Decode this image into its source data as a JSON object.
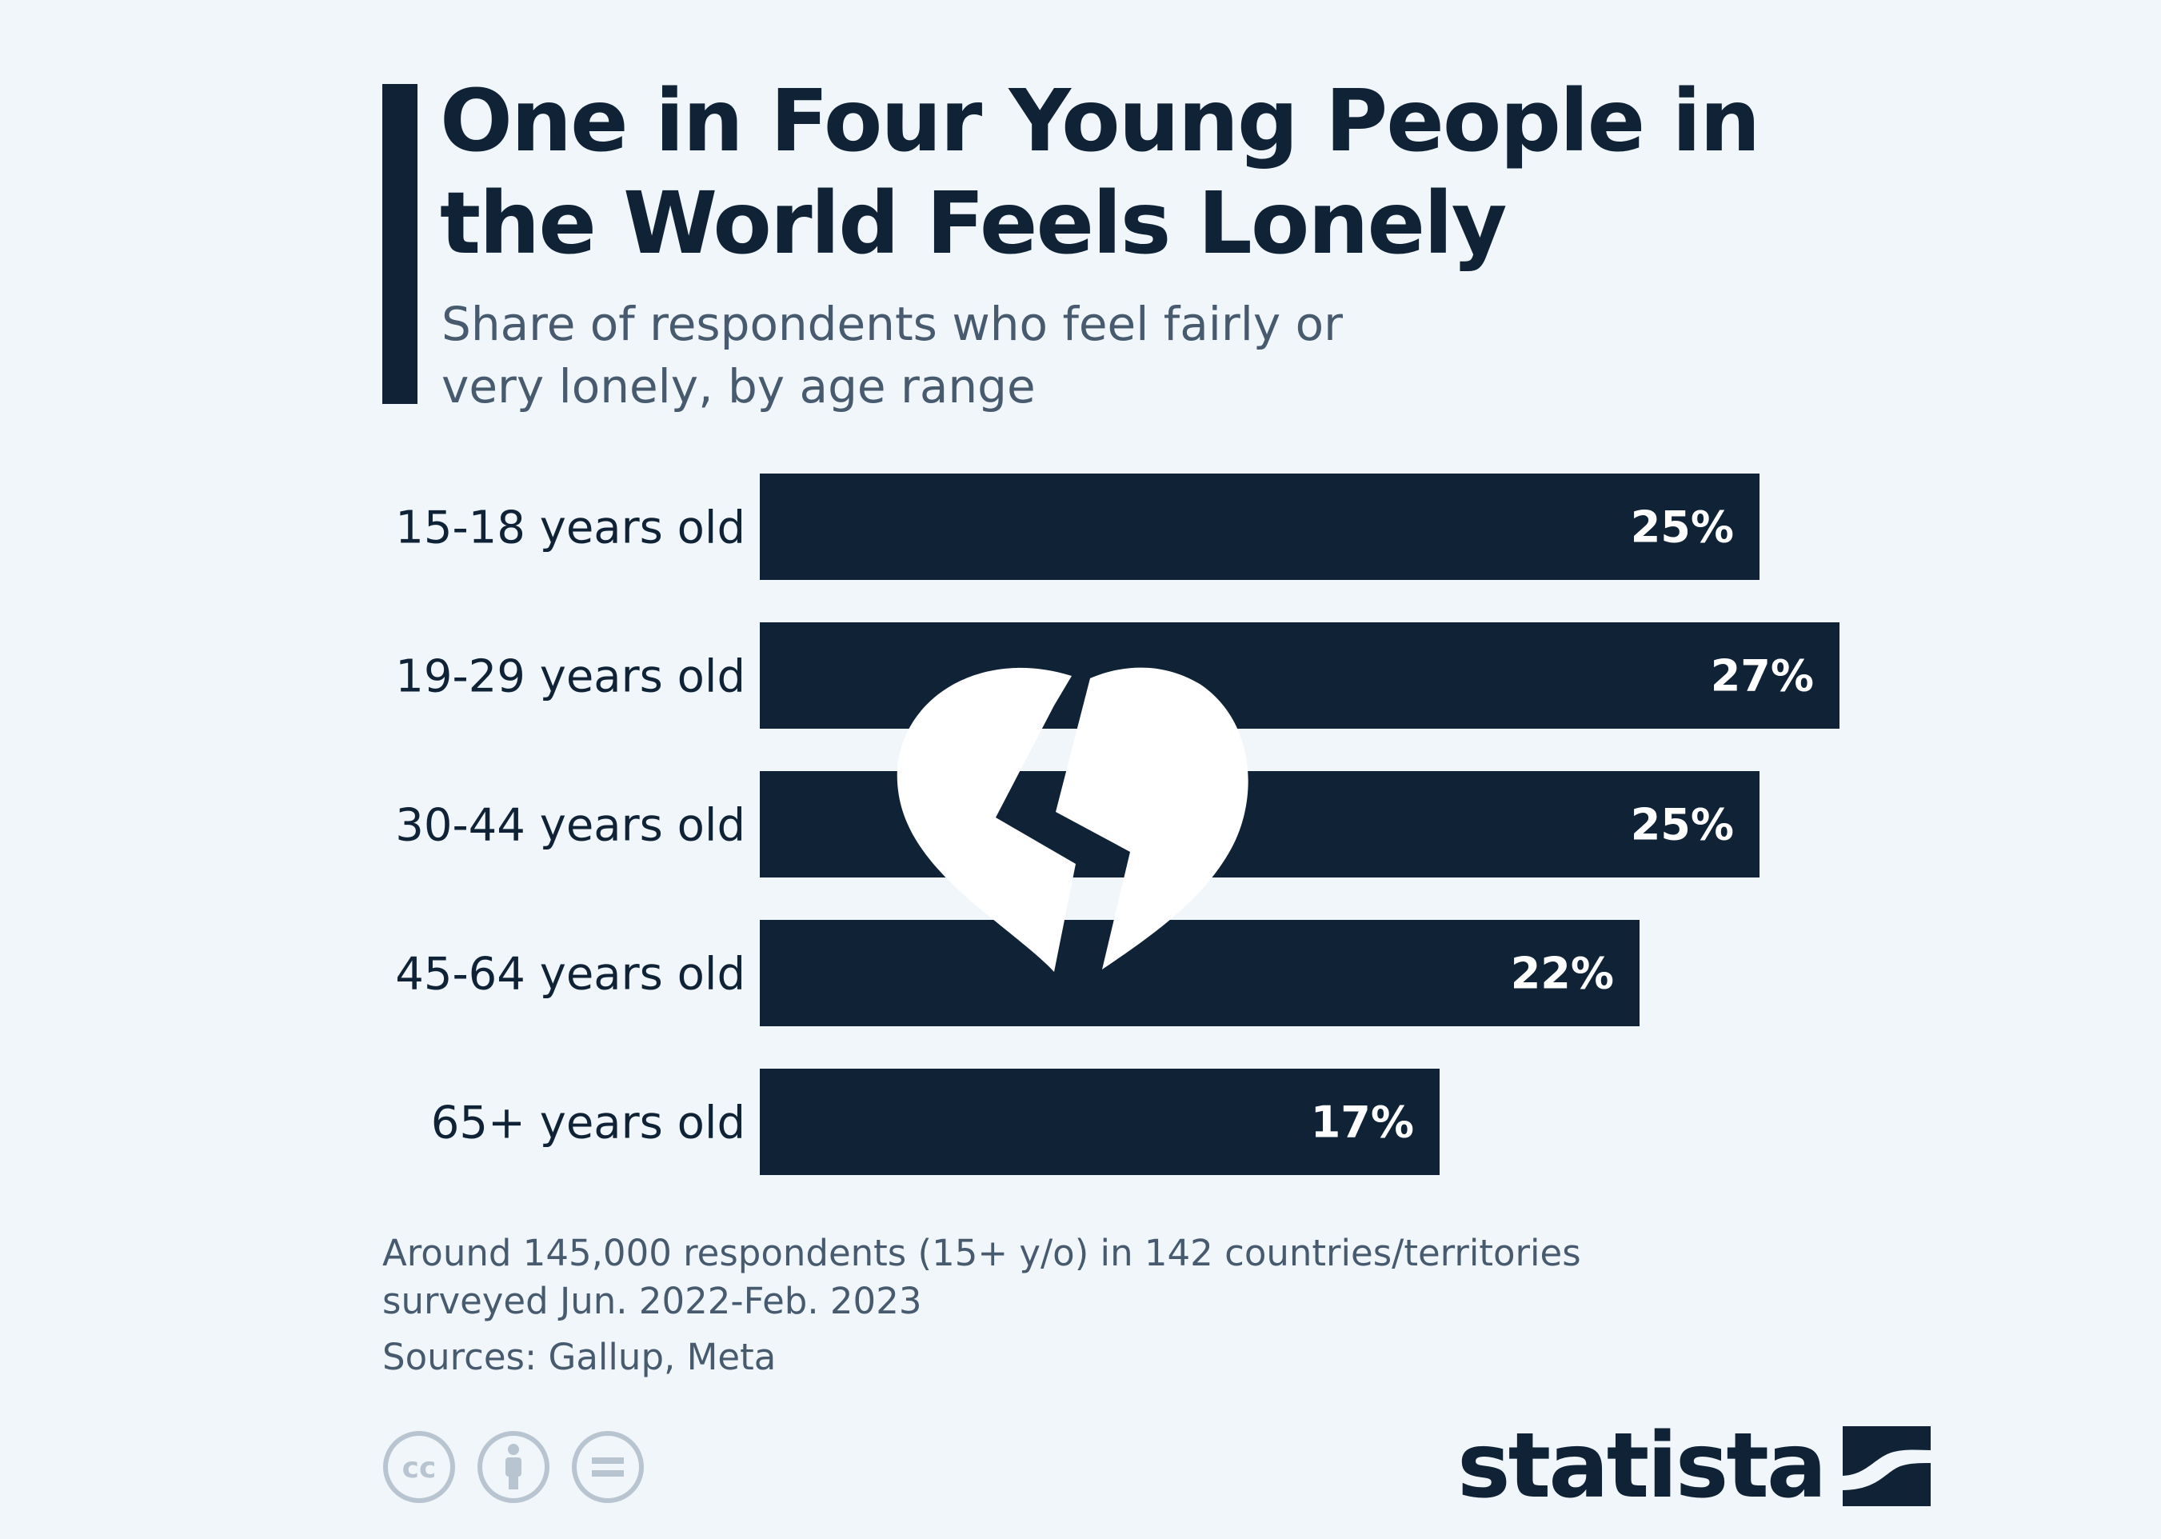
{
  "header": {
    "title": "One in Four Young People in the World Feels Lonely",
    "subtitle": "Share of respondents who feel fairly or very lonely, by age range"
  },
  "chart_data": {
    "type": "bar",
    "orientation": "horizontal",
    "title": "One in Four Young People in the World Feels Lonely",
    "subtitle": "Share of respondents who feel fairly or very lonely, by age range",
    "categories": [
      "15-18 years old",
      "19-29 years old",
      "30-44 years old",
      "45-64 years old",
      "65+ years old"
    ],
    "values": [
      25,
      27,
      25,
      22,
      17
    ],
    "value_labels": [
      "25%",
      "27%",
      "25%",
      "22%",
      "17%"
    ],
    "unit": "%",
    "xlim": [
      0,
      27
    ],
    "grid": false,
    "legend": "none",
    "bar_color": "#102235",
    "label_color": "#ffffff",
    "decoration": "broken-heart-icon"
  },
  "footer": {
    "note": "Around 145,000 respondents (15+ y/o) in 142 countries/territories surveyed Jun. 2022-Feb. 2023",
    "sources": "Sources: Gallup, Meta",
    "brand": "statista",
    "license_icons": [
      "creative-commons-icon",
      "attribution-icon",
      "no-derivatives-icon"
    ]
  },
  "colors": {
    "background": "#f0f6fa",
    "primary": "#102235",
    "muted_text": "#475a6e",
    "license_icon": "#b8c4cf"
  }
}
